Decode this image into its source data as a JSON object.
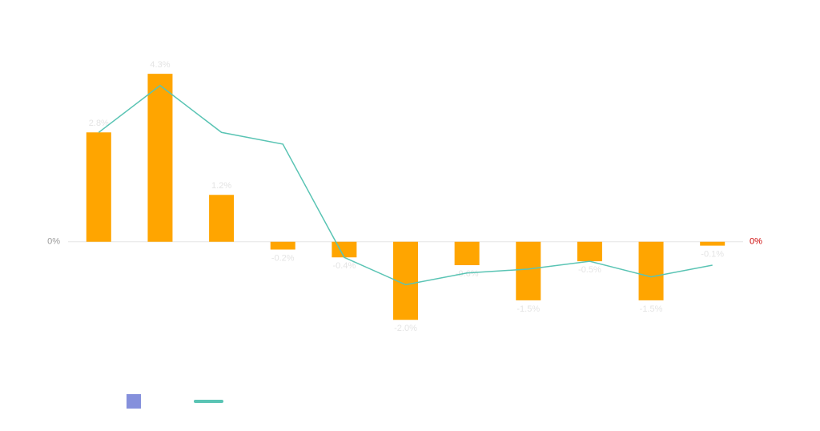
{
  "chart_data": {
    "type": "bar",
    "ylim": [
      -3,
      5
    ],
    "yticks": [
      {
        "value": 0,
        "label": "0%"
      }
    ],
    "y2lim": [
      -3,
      5
    ],
    "y2ticks": [
      {
        "value": 0,
        "label": "0%"
      }
    ],
    "series": [
      {
        "type": "bar",
        "color": "#ffa500",
        "values": [
          2.8,
          4.3,
          1.2,
          -0.2,
          -0.4,
          -2.0,
          -0.6,
          -1.5,
          -0.5,
          -1.5,
          -0.1
        ],
        "value_labels": [
          "2.8%",
          "4.3%",
          "1.2%",
          "-0.2%",
          "-0.4%",
          "-2.0%",
          "-0.6%",
          "-1.5%",
          "-0.5%",
          "-1.5%",
          "-0.1%"
        ]
      },
      {
        "type": "line",
        "color": "#5ac4b4",
        "axis": "y2",
        "values": [
          2.8,
          4.0,
          2.8,
          2.5,
          -0.4,
          -1.1,
          -0.8,
          -0.7,
          -0.5,
          -0.9,
          -0.6
        ]
      },
      {
        "type": "bar",
        "color": "#8590dc",
        "values": []
      }
    ]
  }
}
